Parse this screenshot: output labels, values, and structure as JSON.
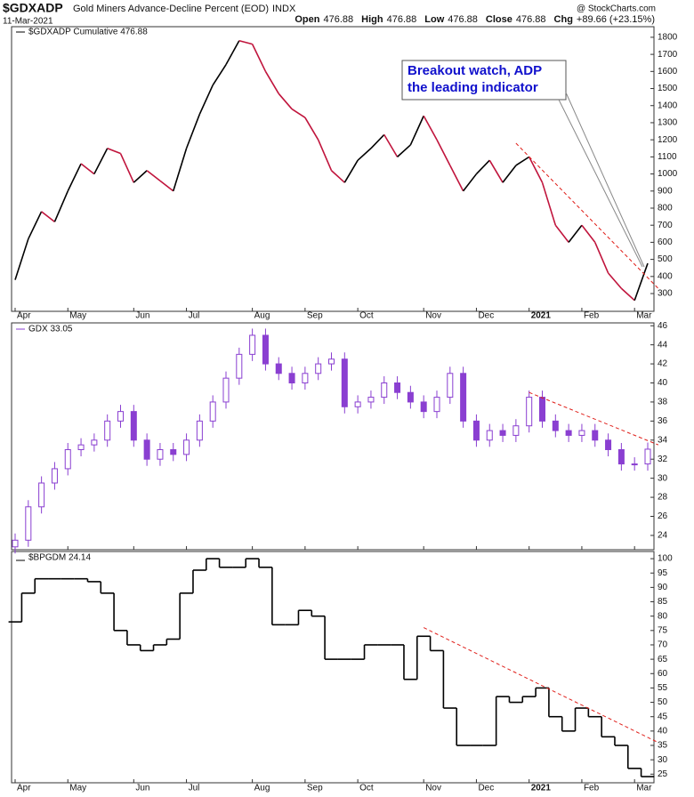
{
  "header": {
    "symbol": "$GDXADP",
    "title": "Gold Miners Advance-Decline Percent (EOD)",
    "exchange": "INDX",
    "date": "11-Mar-2021",
    "quote": [
      {
        "label": "Open",
        "value": 476.88
      },
      {
        "label": "High",
        "value": 476.88
      },
      {
        "label": "Low",
        "value": 476.88
      },
      {
        "label": "Close",
        "value": 476.88
      },
      {
        "label": "Chg",
        "value": "+89.66 (+23.15%)"
      }
    ],
    "credit": "@ StockCharts.com"
  },
  "x_categories": [
    "Apr",
    null,
    null,
    null,
    "May",
    null,
    null,
    null,
    null,
    "Jun",
    null,
    null,
    null,
    "Jul",
    null,
    null,
    null,
    null,
    "Aug",
    null,
    null,
    null,
    "Sep",
    null,
    null,
    null,
    "Oct",
    null,
    null,
    null,
    null,
    "Nov",
    null,
    null,
    null,
    "Dec",
    null,
    null,
    null,
    "2021",
    null,
    null,
    null,
    "Feb",
    null,
    null,
    null,
    "Mar",
    null
  ],
  "chart_data": [
    {
      "type": "line",
      "legend": "$GDXADP Cumulative 476.88",
      "up_color": "#000000",
      "down_color": "#c0143c",
      "values": [
        380,
        620,
        780,
        720,
        900,
        1060,
        1000,
        1150,
        1120,
        950,
        1020,
        960,
        900,
        1150,
        1350,
        1520,
        1640,
        1780,
        1760,
        1600,
        1470,
        1380,
        1330,
        1200,
        1020,
        950,
        1080,
        1150,
        1230,
        1100,
        1170,
        1340,
        1200,
        1050,
        900,
        1000,
        1080,
        950,
        1050,
        1100,
        950,
        700,
        600,
        700,
        600,
        420,
        330,
        260,
        476.88
      ],
      "ylim": [
        196,
        1862
      ],
      "yticks": [
        300,
        400,
        500,
        600,
        700,
        800,
        900,
        1000,
        1100,
        1200,
        1300,
        1400,
        1500,
        1600,
        1700,
        1800
      ],
      "trendline": {
        "x": [
          38,
          48.8
        ],
        "y": [
          1180,
          330
        ],
        "color": "#e0201b"
      },
      "annotation": {
        "lines": [
          "Breakout watch, ADP",
          "the leading indicator"
        ],
        "color": "#1010cc"
      }
    },
    {
      "type": "ohlc",
      "legend": "GDX 33.05",
      "color": "#8a3fd1",
      "open": [
        22.8,
        23.5,
        27,
        29.5,
        31,
        33,
        33.5,
        34,
        36,
        37,
        34,
        32,
        33,
        32.5,
        34,
        36,
        38,
        40.5,
        43,
        45,
        42,
        41,
        40,
        41,
        42,
        42.5,
        37.5,
        38,
        38.5,
        40,
        39,
        38,
        37,
        38.5,
        41,
        36,
        34,
        35,
        34.5,
        35.5,
        38.5,
        36,
        35,
        34.5,
        35,
        34,
        33,
        31.5,
        31.5
      ],
      "high": [
        24.2,
        27.7,
        30.2,
        31.7,
        33.7,
        34.2,
        34.7,
        36.7,
        37.7,
        37.7,
        34.7,
        33.7,
        33.7,
        34.7,
        36.7,
        38.7,
        41.2,
        43.7,
        45.7,
        45.7,
        42.7,
        41.7,
        41.7,
        42.7,
        43.2,
        43.2,
        38.7,
        39.2,
        40.7,
        40.7,
        39.7,
        38.7,
        39.2,
        41.7,
        41.7,
        36.7,
        35.7,
        35.7,
        36.2,
        39.2,
        39.2,
        36.7,
        35.7,
        35.7,
        35.7,
        34.7,
        33.7,
        32.2,
        33.75
      ],
      "low": [
        22.1,
        22.8,
        26.3,
        28.8,
        30.3,
        32.3,
        32.8,
        33.3,
        35.3,
        33.3,
        31.3,
        31.3,
        31.8,
        31.8,
        33.3,
        35.3,
        37.3,
        39.8,
        42.3,
        41.3,
        40.3,
        39.3,
        39.3,
        40.3,
        41.3,
        36.8,
        36.8,
        37.3,
        37.8,
        38.3,
        37.3,
        36.3,
        36.3,
        37.8,
        35.3,
        33.3,
        33.3,
        33.8,
        33.8,
        34.8,
        35.3,
        34.3,
        33.8,
        33.8,
        33.3,
        32.3,
        30.8,
        30.8,
        30.8
      ],
      "close": [
        23.5,
        27,
        29.5,
        31,
        33,
        33.5,
        34,
        36,
        37,
        34,
        32,
        33,
        32.5,
        34,
        36,
        38,
        40.5,
        43,
        45,
        42,
        41,
        40,
        41,
        42,
        42.5,
        37.5,
        38,
        38.5,
        40,
        39,
        38,
        37,
        38.5,
        41,
        36,
        34,
        35,
        34.5,
        35.5,
        38.5,
        36,
        35,
        34.5,
        35,
        34,
        33,
        31.5,
        31.5,
        33.05
      ],
      "ylim": [
        22.5,
        46.3
      ],
      "yticks": [
        24,
        26,
        28,
        30,
        32,
        34,
        36,
        38,
        40,
        42,
        44,
        46
      ],
      "trendline": {
        "x": [
          39,
          48.8
        ],
        "y": [
          39,
          33.5
        ],
        "color": "#e0201b"
      }
    },
    {
      "type": "step",
      "legend": "$BPGDM 24.14",
      "color": "#000000",
      "values": [
        78,
        88,
        93,
        93,
        93,
        93,
        92,
        88,
        75,
        70,
        68,
        70,
        72,
        88,
        96,
        100,
        97,
        97,
        100,
        97,
        77,
        77,
        82,
        80,
        65,
        65,
        65,
        70,
        70,
        70,
        58,
        73,
        68,
        48,
        35,
        35,
        35,
        52,
        50,
        52,
        55,
        45,
        40,
        48,
        45,
        38,
        35,
        27,
        24.14
      ],
      "ylim": [
        22,
        102.5
      ],
      "yticks": [
        25,
        30,
        35,
        40,
        45,
        50,
        55,
        60,
        65,
        70,
        75,
        80,
        85,
        90,
        95,
        100
      ],
      "trendline": {
        "x": [
          31,
          48.8
        ],
        "y": [
          76,
          36
        ],
        "color": "#e0201b"
      }
    }
  ]
}
